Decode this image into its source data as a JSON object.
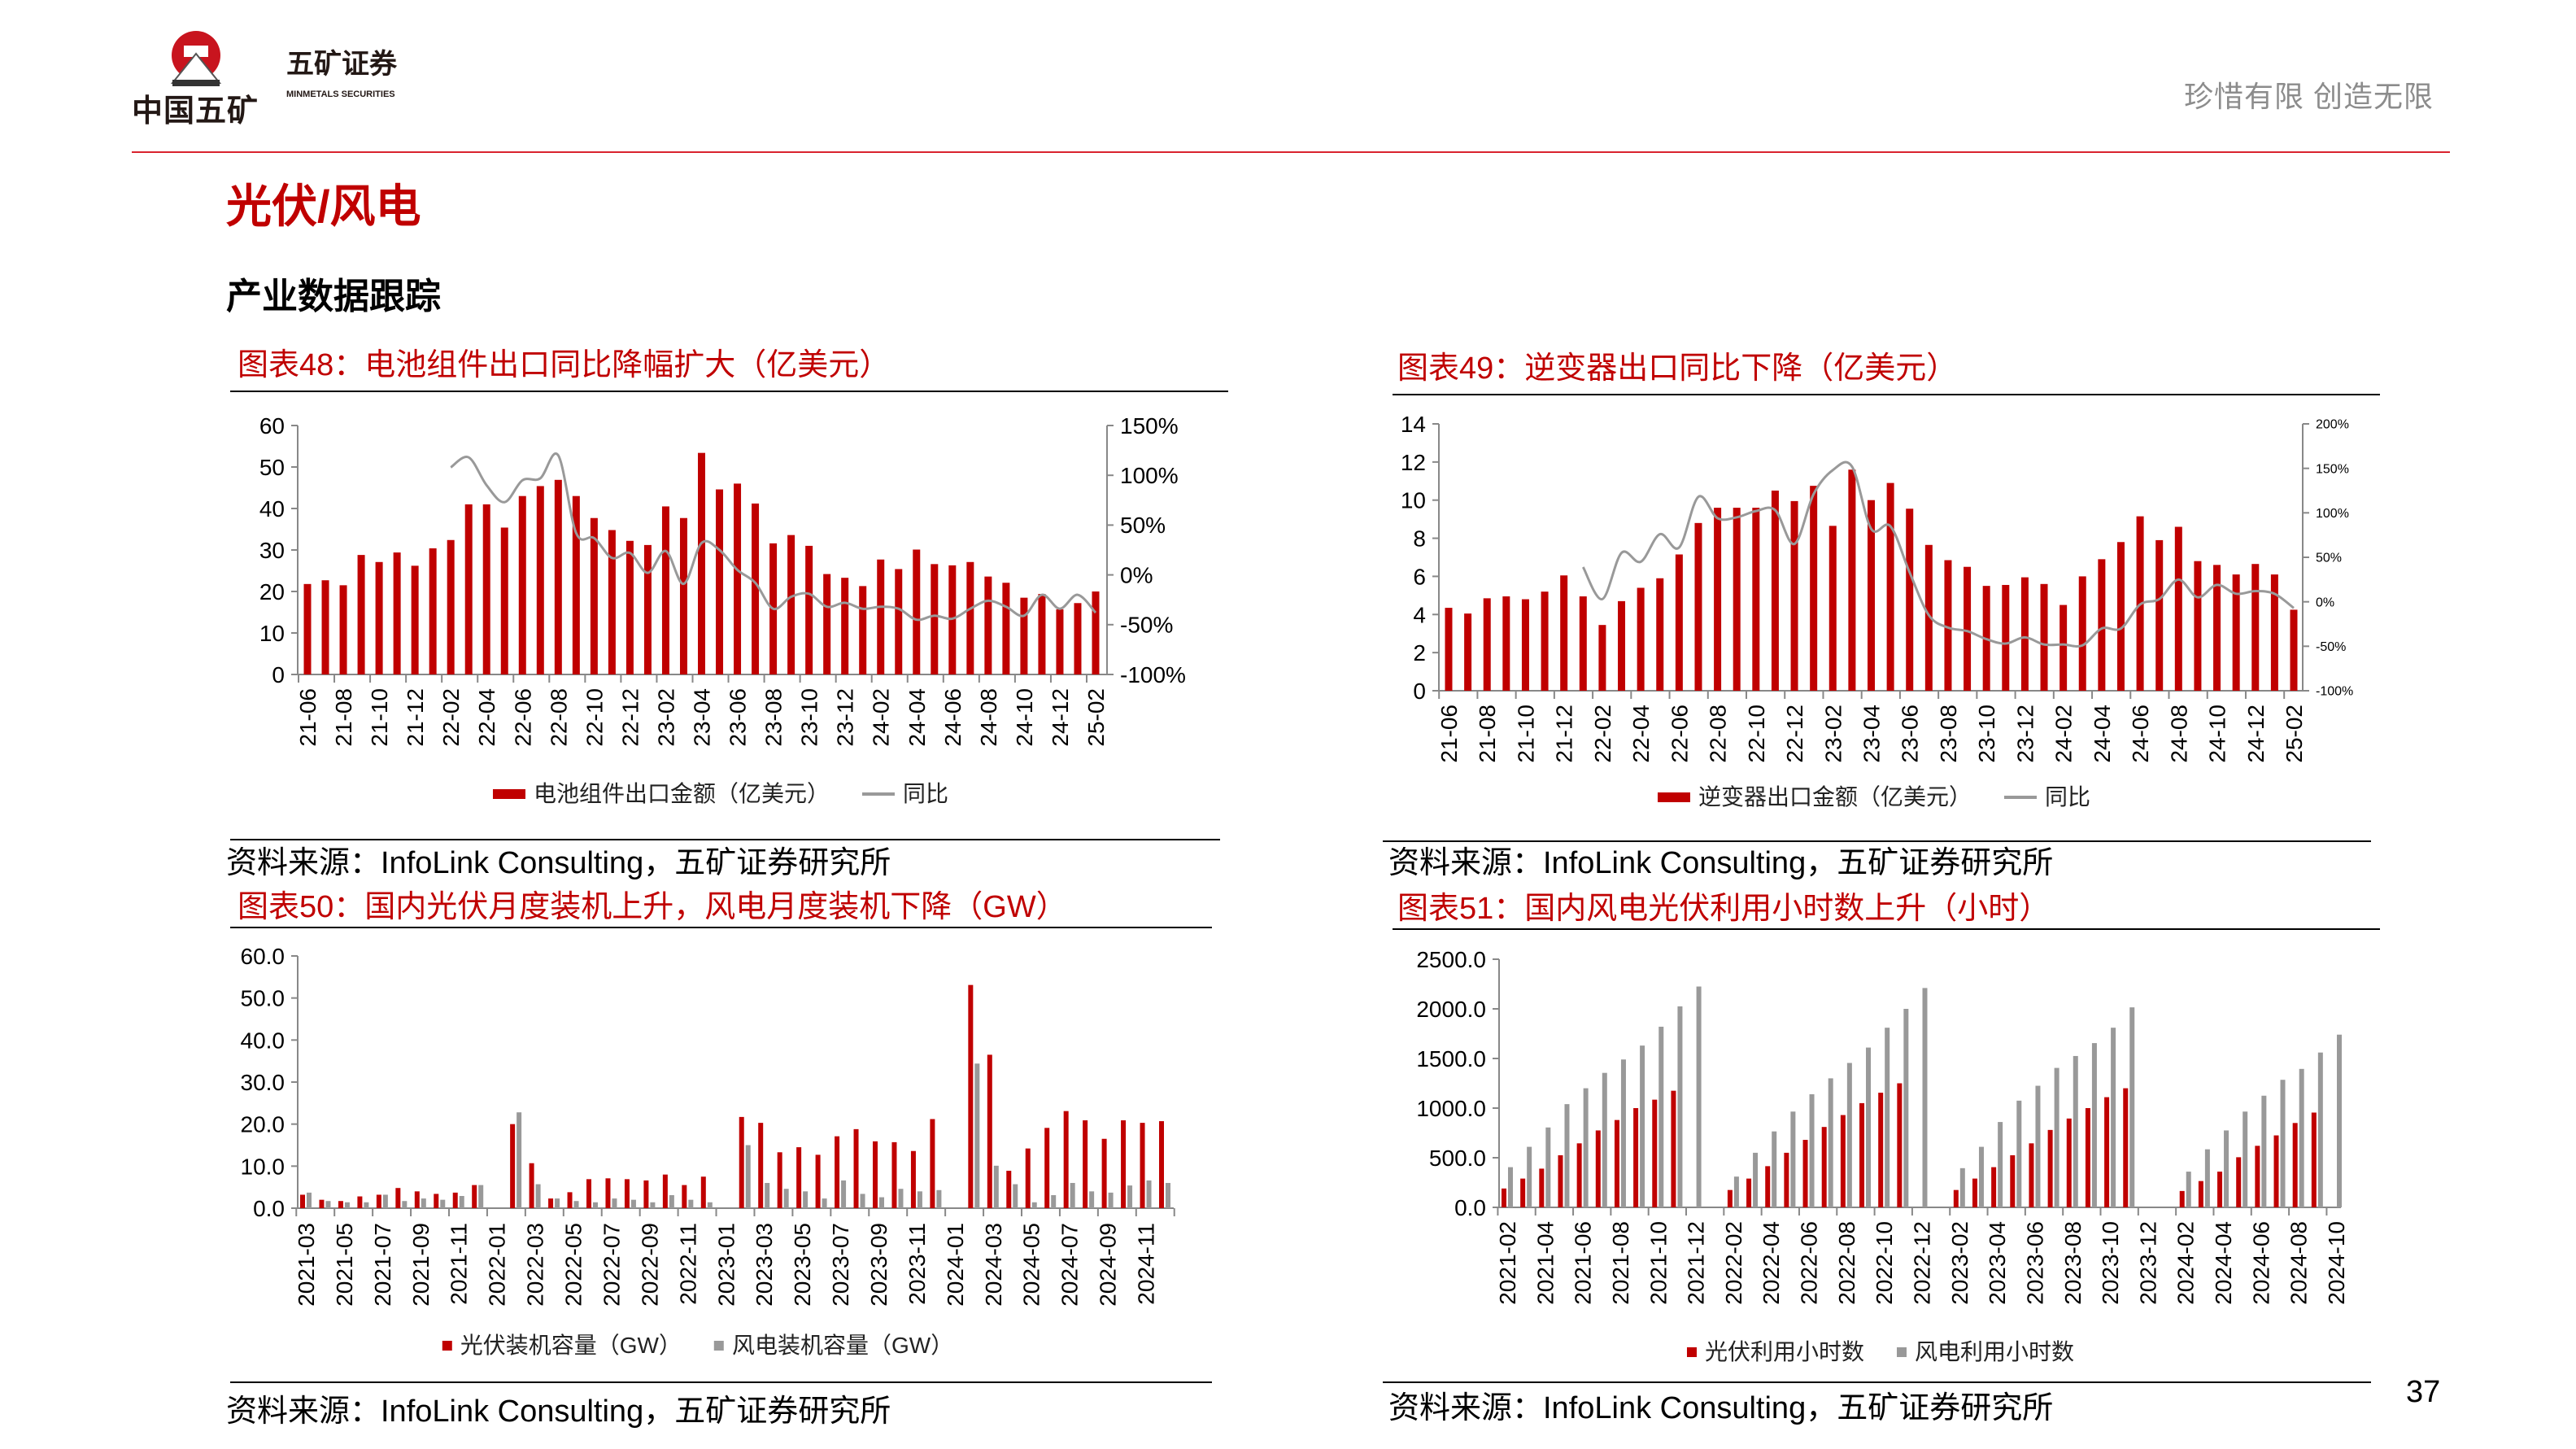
{
  "header": {
    "logo_group": "中国五矿",
    "logo_seal_text": "MINMETALS",
    "logo_company": "五矿证券",
    "logo_company_en": "MINMETALS SECURITIES",
    "slogan": "珍惜有限  创造无限"
  },
  "page": {
    "title": "光伏/风电",
    "subtitle": "产业数据跟踪",
    "page_number": "37"
  },
  "colors": {
    "red": "#c00000",
    "gray": "#999999",
    "rule": "#d9232e"
  },
  "figures": [
    {
      "title": "图表48：电池组件出口同比降幅扩大（亿美元）",
      "source": "资料来源：InfoLink Consulting，五矿证券研究所",
      "legend": [
        "电池组件出口金额（亿美元）",
        "同比"
      ]
    },
    {
      "title": "图表49：逆变器出口同比下降（亿美元）",
      "source": "资料来源：InfoLink Consulting，五矿证券研究所",
      "legend": [
        "逆变器出口金额（亿美元）",
        "同比"
      ]
    },
    {
      "title": "图表50：国内光伏月度装机上升，风电月度装机下降（GW）",
      "source": "资料来源：InfoLink Consulting，五矿证券研究所",
      "legend": [
        "光伏装机容量（GW）",
        "风电装机容量（GW）"
      ]
    },
    {
      "title": "图表51：国内风电光伏利用小时数上升（小时）",
      "source": "资料来源：InfoLink Consulting，五矿证券研究所",
      "legend": [
        "光伏利用小时数",
        "风电利用小时数"
      ]
    }
  ],
  "chart_data": [
    {
      "type": "bar+line",
      "title": "图表48：电池组件出口同比降幅扩大（亿美元）",
      "categories": [
        "21-06",
        "21-07",
        "21-08",
        "21-09",
        "21-10",
        "21-11",
        "21-12",
        "22-01",
        "22-02",
        "22-03",
        "22-04",
        "22-05",
        "22-06",
        "22-07",
        "22-08",
        "22-09",
        "22-10",
        "22-11",
        "22-12",
        "23-01",
        "23-02",
        "23-03",
        "23-04",
        "23-05",
        "23-06",
        "23-07",
        "23-08",
        "23-09",
        "23-10",
        "23-11",
        "23-12",
        "24-01",
        "24-02",
        "24-03",
        "24-04",
        "24-05",
        "24-06",
        "24-07",
        "24-08",
        "24-09",
        "24-10",
        "24-11",
        "24-12",
        "25-01",
        "25-02"
      ],
      "series": [
        {
          "name": "电池组件出口金额（亿美元）",
          "kind": "bar",
          "axis": "left",
          "values": [
            21.8,
            22.7,
            21.5,
            28.8,
            27.1,
            29.4,
            26.2,
            30.4,
            32.4,
            41,
            41,
            35.4,
            43,
            45.4,
            46.9,
            43,
            37.7,
            34.8,
            32.2,
            31.2,
            40.5,
            37.7,
            53.4,
            44.6,
            46,
            41.2,
            31.6,
            33.6,
            31,
            24.2,
            23.3,
            21.3,
            27.7,
            25.4,
            30.1,
            26.6,
            26.3,
            27.1,
            23.6,
            22.1,
            18.5,
            19.4,
            15.7,
            17.2,
            20
          ]
        },
        {
          "name": "同比",
          "kind": "line",
          "axis": "right",
          "unit": "%",
          "values": [
            null,
            null,
            null,
            null,
            null,
            null,
            null,
            null,
            108,
            118,
            90,
            73,
            95,
            97,
            120,
            42,
            37,
            17,
            22,
            2,
            24,
            -9,
            32,
            25,
            5,
            -8,
            -34,
            -22,
            -19,
            -32,
            -28,
            -34,
            -32,
            -34,
            -45,
            -41,
            -44,
            -34,
            -26,
            -32,
            -41,
            -20,
            -34,
            -20,
            -38
          ]
        }
      ],
      "ylim": [
        0,
        60
      ],
      "yticks": [
        "0",
        "10",
        "20",
        "30",
        "40",
        "50",
        "60"
      ],
      "y2lim": [
        -100,
        150
      ],
      "y2ticks": [
        "-100%",
        "-50%",
        "0%",
        "50%",
        "100%",
        "150%"
      ],
      "legend": "bottom"
    },
    {
      "type": "bar+line",
      "title": "图表49：逆变器出口同比下降（亿美元）",
      "categories": [
        "21-06",
        "21-07",
        "21-08",
        "21-09",
        "21-10",
        "21-11",
        "21-12",
        "22-01",
        "22-02",
        "22-03",
        "22-04",
        "22-05",
        "22-06",
        "22-07",
        "22-08",
        "22-09",
        "22-10",
        "22-11",
        "22-12",
        "23-01",
        "23-02",
        "23-03",
        "23-04",
        "23-05",
        "23-06",
        "23-07",
        "23-08",
        "23-09",
        "23-10",
        "23-11",
        "23-12",
        "24-01",
        "24-02",
        "24-03",
        "24-04",
        "24-05",
        "24-06",
        "24-07",
        "24-08",
        "24-09",
        "24-10",
        "24-11",
        "24-12",
        "25-01",
        "25-02"
      ],
      "series": [
        {
          "name": "逆变器出口金额（亿美元）",
          "kind": "bar",
          "axis": "left",
          "values": [
            4.35,
            4.05,
            4.85,
            4.95,
            4.8,
            5.2,
            6.05,
            4.95,
            3.45,
            4.7,
            5.4,
            5.9,
            7.15,
            8.8,
            9.6,
            9.6,
            9.6,
            10.5,
            9.95,
            10.75,
            8.65,
            11.6,
            10.0,
            10.9,
            9.55,
            7.65,
            6.85,
            6.5,
            5.5,
            5.55,
            5.95,
            5.6,
            4.5,
            6.0,
            6.9,
            7.8,
            9.15,
            7.9,
            8.6,
            6.8,
            6.6,
            6.1,
            6.65,
            6.1,
            4.25
          ]
        },
        {
          "name": "同比",
          "kind": "line",
          "axis": "right",
          "unit": "%",
          "values": [
            null,
            null,
            null,
            null,
            null,
            null,
            null,
            39,
            3,
            55,
            45,
            76,
            61,
            118,
            94,
            95,
            102,
            103,
            65,
            121,
            148,
            152,
            82,
            85,
            33,
            -15,
            -29,
            -33,
            -42,
            -47,
            -40,
            -48,
            -48,
            -49,
            -30,
            -30,
            -3,
            3,
            25,
            5,
            19,
            9,
            12,
            9,
            -7
          ]
        }
      ],
      "ylim": [
        0,
        14
      ],
      "yticks": [
        "0",
        "2",
        "4",
        "6",
        "8",
        "10",
        "12",
        "14"
      ],
      "y2lim": [
        -100,
        200
      ],
      "y2ticks": [
        "-100%",
        "-50%",
        "0%",
        "50%",
        "100%",
        "150%",
        "200%"
      ],
      "legend": "bottom"
    },
    {
      "type": "bar",
      "title": "图表50：国内光伏月度装机上升，风电月度装机下降（GW）",
      "categories": [
        "2021-03",
        "2021-04",
        "2021-05",
        "2021-06",
        "2021-07",
        "2021-08",
        "2021-09",
        "2021-10",
        "2021-11",
        "2021-12",
        "2022-01",
        "2022-02",
        "2022-03",
        "2022-04",
        "2022-05",
        "2022-06",
        "2022-07",
        "2022-08",
        "2022-09",
        "2022-10",
        "2022-11",
        "2022-12",
        "2023-01",
        "2023-02",
        "2023-03",
        "2023-04",
        "2023-05",
        "2023-06",
        "2023-07",
        "2023-08",
        "2023-09",
        "2023-10",
        "2023-11",
        "2023-12",
        "2024-01",
        "2024-02",
        "2024-03",
        "2024-04",
        "2024-05",
        "2024-06",
        "2024-07",
        "2024-08",
        "2024-09",
        "2024-10",
        "2024-11",
        "2024-12"
      ],
      "series": [
        {
          "name": "光伏装机容量（GW）",
          "values": [
            3.2,
            2.0,
            1.7,
            2.8,
            3.2,
            4.8,
            4.0,
            3.4,
            3.7,
            5.5,
            null,
            20.0,
            10.7,
            2.3,
            3.8,
            6.9,
            7.1,
            6.9,
            6.6,
            8.0,
            5.5,
            7.5,
            null,
            21.7,
            20.3,
            13.3,
            14.5,
            12.7,
            17.1,
            18.8,
            15.9,
            15.7,
            13.6,
            21.2,
            null,
            53.1,
            36.5,
            8.9,
            14.2,
            19.1,
            23.1,
            20.9,
            16.5,
            20.9,
            20.3,
            20.7
          ]
        },
        {
          "name": "风电装机容量（GW）",
          "values": [
            3.7,
            1.7,
            1.4,
            1.4,
            3.2,
            1.7,
            2.3,
            2.0,
            2.9,
            5.5,
            null,
            22.8,
            5.7,
            2.3,
            1.7,
            1.4,
            2.3,
            2.0,
            1.4,
            3.1,
            2.0,
            1.4,
            null,
            15.0,
            6.0,
            4.6,
            4.0,
            2.3,
            6.6,
            3.4,
            2.6,
            4.6,
            4.0,
            4.3,
            null,
            34.4,
            10.1,
            5.7,
            1.4,
            3.1,
            6.0,
            4.0,
            3.7,
            5.4,
            6.6,
            6.0
          ]
        }
      ],
      "ylim": [
        0,
        60
      ],
      "yticks": [
        "0.0",
        "10.0",
        "20.0",
        "30.0",
        "40.0",
        "50.0",
        "60.0"
      ],
      "legend": "bottom"
    },
    {
      "type": "bar",
      "title": "图表51：国内风电光伏利用小时数上升（小时）",
      "categories": [
        "2021-02",
        "2021-03",
        "2021-04",
        "2021-05",
        "2021-06",
        "2021-07",
        "2021-08",
        "2021-09",
        "2021-10",
        "2021-11",
        "2021-12",
        "2022-01",
        "2022-02",
        "2022-03",
        "2022-04",
        "2022-05",
        "2022-06",
        "2022-07",
        "2022-08",
        "2022-09",
        "2022-10",
        "2022-11",
        "2022-12",
        "2023-01",
        "2023-02",
        "2023-03",
        "2023-04",
        "2023-05",
        "2023-06",
        "2023-07",
        "2023-08",
        "2023-09",
        "2023-10",
        "2023-11",
        "2023-12",
        "2024-01",
        "2024-02",
        "2024-03",
        "2024-04",
        "2024-05",
        "2024-06",
        "2024-07",
        "2024-08",
        "2024-09",
        "2024-10"
      ],
      "series": [
        {
          "name": "光伏利用小时数",
          "values": [
            190,
            290,
            390,
            525,
            645,
            775,
            880,
            1000,
            1085,
            1175,
            null,
            null,
            175,
            290,
            415,
            550,
            680,
            810,
            930,
            1050,
            1155,
            1250,
            null,
            null,
            175,
            290,
            405,
            525,
            645,
            780,
            895,
            1000,
            1110,
            1200,
            null,
            null,
            165,
            265,
            360,
            505,
            620,
            725,
            850,
            955,
            null
          ]
        },
        {
          "name": "风电利用小时数",
          "values": [
            405,
            610,
            805,
            1040,
            1200,
            1355,
            1490,
            1630,
            1820,
            2025,
            2225,
            null,
            310,
            550,
            765,
            965,
            1140,
            1300,
            1455,
            1610,
            1810,
            2000,
            2210,
            null,
            395,
            610,
            860,
            1075,
            1225,
            1405,
            1525,
            1655,
            1810,
            2015,
            null,
            null,
            360,
            585,
            775,
            965,
            1125,
            1285,
            1395,
            1560,
            1740
          ]
        }
      ],
      "ylim": [
        0,
        2500
      ],
      "yticks": [
        "0.0",
        "500.0",
        "1000.0",
        "1500.0",
        "2000.0",
        "2500.0"
      ],
      "legend": "bottom"
    }
  ]
}
